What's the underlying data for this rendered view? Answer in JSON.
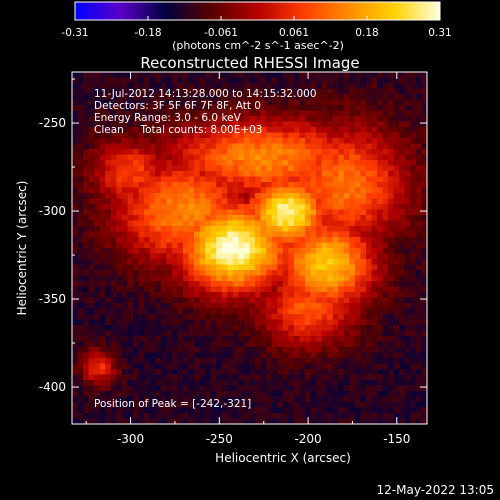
{
  "chart_data": {
    "type": "heatmap",
    "title": "Reconstructed RHESSI Image",
    "colorbar": {
      "ticks": [
        "-0.31",
        "-0.18",
        "-0.061",
        "0.061",
        "0.18",
        "0.31"
      ],
      "range": [
        -0.31,
        0.31
      ],
      "unit_label": "(photons cm^-2 s^-1 asec^-2)",
      "colors": [
        "#0000ff",
        "#5a00c8",
        "#00003c",
        "#5a0000",
        "#b40000",
        "#ff3c00",
        "#ff8c00",
        "#ffd200",
        "#ffffe0"
      ]
    },
    "info_lines": [
      "11-Jul-2012 14:13:28.000 to 14:15:32.000",
      "Detectors: 3F 5F 6F 7F 8F, Att 0",
      "Energy Range: 3.0 - 6.0 keV",
      "Clean     Total counts: 8.00E+03"
    ],
    "peak_label": "Position of Peak = [-242,-321]",
    "xlabel": "Heliocentric X (arcsec)",
    "ylabel": "Heliocentric Y (arcsec)",
    "xlim": [
      -333,
      -133
    ],
    "ylim": [
      -421,
      -221
    ],
    "xticks": [
      -300,
      -250,
      -200,
      -150
    ],
    "yticks": [
      -250,
      -300,
      -350,
      -400
    ],
    "xtick_labels": [
      "-300",
      "-250",
      "-200",
      "-150"
    ],
    "ytick_labels": [
      "-250",
      "-300",
      "-350",
      "-400"
    ],
    "peak": [
      -242,
      -321
    ],
    "sources": [
      {
        "x": -242,
        "y": -321,
        "value": 0.31,
        "sx": 22,
        "sy": 18
      },
      {
        "x": -212,
        "y": -301,
        "value": 0.29,
        "sx": 16,
        "sy": 14
      },
      {
        "x": -190,
        "y": -330,
        "value": 0.22,
        "sx": 20,
        "sy": 18
      },
      {
        "x": -270,
        "y": -300,
        "value": 0.15,
        "sx": 28,
        "sy": 22
      },
      {
        "x": -225,
        "y": -270,
        "value": 0.15,
        "sx": 40,
        "sy": 16
      },
      {
        "x": -180,
        "y": -285,
        "value": 0.13,
        "sx": 26,
        "sy": 24
      },
      {
        "x": -200,
        "y": -355,
        "value": 0.1,
        "sx": 20,
        "sy": 16
      },
      {
        "x": -300,
        "y": -278,
        "value": 0.08,
        "sx": 16,
        "sy": 14
      },
      {
        "x": -318,
        "y": -389,
        "value": 0.06,
        "sx": 7,
        "sy": 7
      }
    ],
    "background": -0.12,
    "grid": false
  },
  "footer": {
    "date": "12-May-2022 13:05"
  }
}
